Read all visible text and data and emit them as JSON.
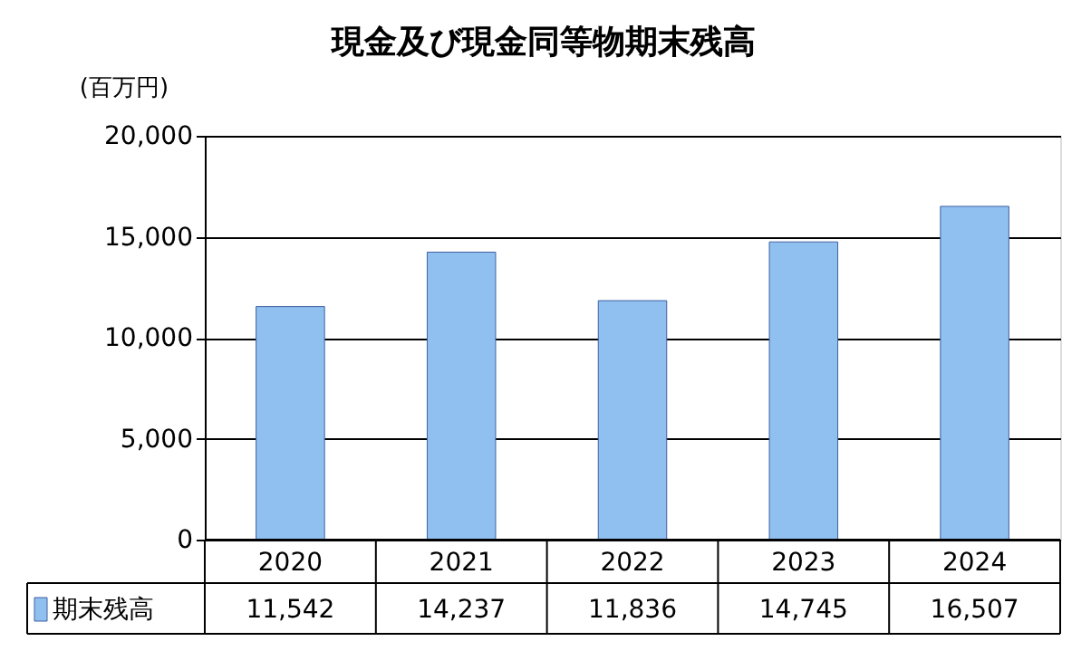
{
  "chart_data": {
    "type": "bar",
    "title": "現金及び現金同等物期末残高",
    "ylabel": "(百万円)",
    "categories": [
      "2020",
      "2021",
      "2022",
      "2023",
      "2024"
    ],
    "series": [
      {
        "name": "期末残高",
        "color": "#8fc0f0",
        "values": [
          11542,
          14237,
          11836,
          14745,
          16507
        ],
        "value_labels": [
          "11,542",
          "14,237",
          "11,836",
          "14,745",
          "16,507"
        ]
      }
    ],
    "ylim": [
      0,
      20000
    ],
    "yticks": [
      0,
      {
        "value": 5000,
        "label": "5,000"
      },
      {
        "value": 10000,
        "label": "10,000"
      },
      {
        "value": 15000,
        "label": "15,000"
      },
      {
        "value": 20000,
        "label": "20,000"
      }
    ],
    "grid": "y",
    "legend": "bottom"
  }
}
